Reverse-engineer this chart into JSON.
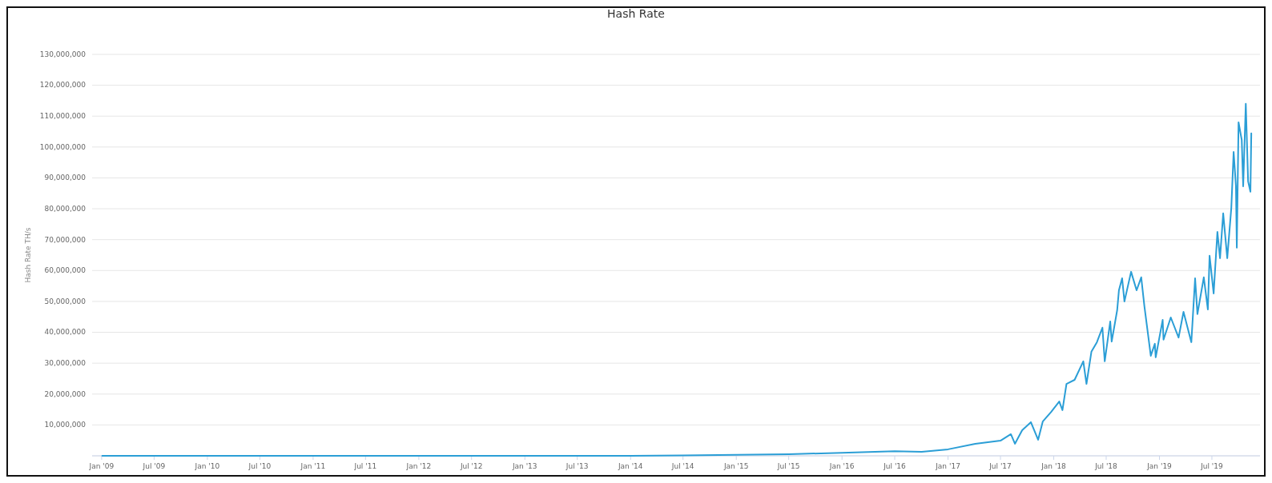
{
  "chart_data": {
    "type": "line",
    "title": "Hash Rate",
    "ylabel": "Hash Rate TH/s",
    "grid": "y",
    "marker": "none",
    "line_style": "solid",
    "xlim": [
      "2008-11-29",
      "2019-12-14"
    ],
    "ylim": [
      0,
      130000000
    ],
    "yticks": [
      {
        "value": 0,
        "label": null
      },
      {
        "value": 10000000,
        "label": "10,000,000"
      },
      {
        "value": 20000000,
        "label": "20,000,000"
      },
      {
        "value": 30000000,
        "label": "30,000,000"
      },
      {
        "value": 40000000,
        "label": "40,000,000"
      },
      {
        "value": 50000000,
        "label": "50,000,000"
      },
      {
        "value": 60000000,
        "label": "60,000,000"
      },
      {
        "value": 70000000,
        "label": "70,000,000"
      },
      {
        "value": 80000000,
        "label": "80,000,000"
      },
      {
        "value": 90000000,
        "label": "90,000,000"
      },
      {
        "value": 100000000,
        "label": "100,000,000"
      },
      {
        "value": 110000000,
        "label": "110,000,000"
      },
      {
        "value": 120000000,
        "label": "120,000,000"
      },
      {
        "value": 130000000,
        "label": "130,000,000"
      }
    ],
    "xticks": [
      {
        "value": "2009-01",
        "label": "Jan '09"
      },
      {
        "value": "2009-07",
        "label": "Jul '09"
      },
      {
        "value": "2010-01",
        "label": "Jan '10"
      },
      {
        "value": "2010-07",
        "label": "Jul '10"
      },
      {
        "value": "2011-01",
        "label": "Jan '11"
      },
      {
        "value": "2011-07",
        "label": "Jul '11"
      },
      {
        "value": "2012-01",
        "label": "Jan '12"
      },
      {
        "value": "2012-07",
        "label": "Jul '12"
      },
      {
        "value": "2013-01",
        "label": "Jan '13"
      },
      {
        "value": "2013-07",
        "label": "Jul '13"
      },
      {
        "value": "2014-01",
        "label": "Jan '14"
      },
      {
        "value": "2014-07",
        "label": "Jul '14"
      },
      {
        "value": "2015-01",
        "label": "Jan '15"
      },
      {
        "value": "2015-07",
        "label": "Jul '15"
      },
      {
        "value": "2016-01",
        "label": "Jan '16"
      },
      {
        "value": "2016-07",
        "label": "Jul '16"
      },
      {
        "value": "2017-01",
        "label": "Jan '17"
      },
      {
        "value": "2017-07",
        "label": "Jul '17"
      },
      {
        "value": "2018-01",
        "label": "Jan '18"
      },
      {
        "value": "2018-07",
        "label": "Jul '18"
      },
      {
        "value": "2019-01",
        "label": "Jan '19"
      },
      {
        "value": "2019-07",
        "label": "Jul '19"
      }
    ],
    "series": [
      {
        "color": "#2b9ed6",
        "x": [
          "2009-01-03",
          "2011-01-01",
          "2013-01-01",
          "2014-01-01",
          "2014-07-01",
          "2015-01-01",
          "2015-07-01",
          "2016-01-01",
          "2016-07-01",
          "2016-10-02",
          "2017-01-01",
          "2017-04-05",
          "2017-07-01",
          "2017-08-06",
          "2017-08-20",
          "2017-09-14",
          "2017-10-14",
          "2017-11-08",
          "2017-11-24",
          "2017-12-23",
          "2018-01-20",
          "2018-01-31",
          "2018-02-14",
          "2018-03-14",
          "2018-04-13",
          "2018-04-24",
          "2018-05-11",
          "2018-05-30",
          "2018-06-18",
          "2018-06-26",
          "2018-07-15",
          "2018-07-20",
          "2018-08-08",
          "2018-08-14",
          "2018-08-25",
          "2018-09-02",
          "2018-09-25",
          "2018-10-14",
          "2018-10-30",
          "2018-11-10",
          "2018-12-02",
          "2018-12-16",
          "2018-12-19",
          "2019-01-12",
          "2019-01-15",
          "2019-02-09",
          "2019-03-08",
          "2019-03-25",
          "2019-04-21",
          "2019-05-04",
          "2019-05-12",
          "2019-06-03",
          "2019-06-17",
          "2019-06-23",
          "2019-07-07",
          "2019-07-20",
          "2019-07-29",
          "2019-08-09",
          "2019-08-23",
          "2019-09-06",
          "2019-09-14",
          "2019-09-22",
          "2019-09-25",
          "2019-10-01",
          "2019-10-12",
          "2019-10-17",
          "2019-10-26",
          "2019-11-03",
          "2019-11-11",
          "2019-11-14"
        ],
        "values": [
          0,
          0,
          0,
          0,
          100000,
          300000,
          500000,
          1000000,
          1500000,
          1300000,
          2100000,
          3900000,
          4900000,
          7000000,
          3900000,
          8300000,
          10900000,
          5200000,
          11100000,
          14200000,
          17600000,
          14800000,
          23300000,
          24600000,
          30600000,
          23300000,
          33700000,
          36800000,
          41500000,
          30600000,
          43500000,
          37000000,
          47200000,
          53600000,
          57500000,
          50000000,
          59600000,
          53600000,
          57800000,
          48400000,
          32400000,
          36300000,
          31900000,
          44000000,
          37600000,
          44800000,
          38300000,
          46600000,
          36800000,
          57500000,
          45900000,
          57800000,
          47400000,
          64800000,
          52600000,
          72500000,
          64000000,
          78500000,
          64000000,
          80300000,
          98400000,
          87300000,
          67400000,
          108000000,
          102300000,
          87300000,
          114000000,
          88900000,
          85500000,
          104400000
        ]
      }
    ]
  }
}
